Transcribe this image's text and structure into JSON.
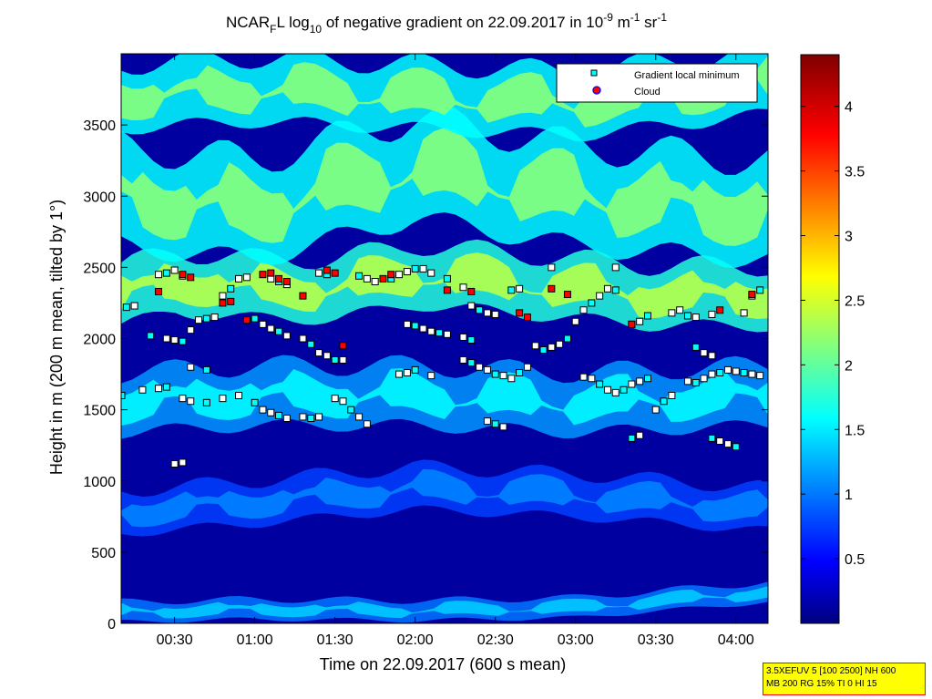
{
  "chart_data": {
    "type": "heatmap",
    "title": {
      "prefix": "NCAR",
      "prefix_sub": "F",
      "part2": "L log",
      "part2_sub": "10",
      "part3": " of negative gradient on 22.09.2017 in 10",
      "exp1": "-9",
      "part4": " m",
      "exp2": "-1",
      "part5": " sr",
      "exp3": "-1"
    },
    "xlabel": "Time on 22.09.2017 (600 s mean)",
    "ylabel": "Height in m (200 m mean, tilted by 1°)",
    "x_range_hours": [
      0.167,
      4.2
    ],
    "y_range_m": [
      0,
      4000
    ],
    "x_ticks": [
      {
        "h": 0.5,
        "label": "00:30"
      },
      {
        "h": 1.0,
        "label": "01:00"
      },
      {
        "h": 1.5,
        "label": "01:30"
      },
      {
        "h": 2.0,
        "label": "02:00"
      },
      {
        "h": 2.5,
        "label": "02:30"
      },
      {
        "h": 3.0,
        "label": "03:00"
      },
      {
        "h": 3.5,
        "label": "03:30"
      },
      {
        "h": 4.0,
        "label": "04:00"
      }
    ],
    "y_ticks": [
      0,
      500,
      1000,
      1500,
      2000,
      2500,
      3000,
      3500
    ],
    "colorbar": {
      "range": [
        0,
        4.4
      ],
      "ticks": [
        0.5,
        1,
        1.5,
        2,
        2.5,
        3,
        3.5,
        4
      ],
      "tick_labels": [
        "0.5",
        "1",
        "1.5",
        "2",
        "2.5",
        "3",
        "3.5",
        "4"
      ],
      "colormap": "jet"
    },
    "layers": [
      {
        "type": "band",
        "h0": 0.167,
        "h1": 4.2,
        "y_center": [
          [
            0.167,
            80
          ],
          [
            1.0,
            100
          ],
          [
            2.0,
            90
          ],
          [
            3.0,
            110
          ],
          [
            4.2,
            220
          ]
        ],
        "thickness": 140,
        "value": 1.4
      },
      {
        "type": "band",
        "h0": 0.167,
        "h1": 4.2,
        "y_center": [
          [
            0.167,
            780
          ],
          [
            1.0,
            850
          ],
          [
            2.0,
            950
          ],
          [
            3.0,
            900
          ],
          [
            4.2,
            800
          ]
        ],
        "thickness": 300,
        "value": 1.1
      },
      {
        "type": "band",
        "h0": 0.167,
        "h1": 4.2,
        "y_center": [
          [
            0.167,
            1550
          ],
          [
            1.0,
            1600
          ],
          [
            2.0,
            1600
          ],
          [
            3.0,
            1550
          ],
          [
            4.2,
            1600
          ]
        ],
        "thickness": 420,
        "value": 1.6
      },
      {
        "type": "band",
        "h0": 0.167,
        "h1": 4.2,
        "y_center": [
          [
            0.167,
            2300
          ],
          [
            0.5,
            2400
          ],
          [
            1.0,
            2350
          ],
          [
            1.5,
            2350
          ],
          [
            2.0,
            2450
          ],
          [
            2.5,
            2400
          ],
          [
            3.0,
            2350
          ],
          [
            3.5,
            2300
          ],
          [
            4.2,
            2300
          ]
        ],
        "thickness": 420,
        "value": 2.4
      },
      {
        "type": "band",
        "h0": 0.167,
        "h1": 4.2,
        "y_center": [
          [
            0.167,
            3000
          ],
          [
            1.0,
            2900
          ],
          [
            2.0,
            3200
          ],
          [
            3.0,
            3000
          ],
          [
            4.2,
            2900
          ]
        ],
        "thickness": 700,
        "value": 2.2
      },
      {
        "type": "band",
        "h0": 0.167,
        "h1": 4.2,
        "y_center": [
          [
            0.167,
            3700
          ],
          [
            1.0,
            3750
          ],
          [
            2.0,
            3700
          ],
          [
            3.0,
            3650
          ],
          [
            4.2,
            3800
          ]
        ],
        "thickness": 450,
        "value": 2.2
      }
    ],
    "markers_gradient_min": [
      [
        0.2,
        2220
      ],
      [
        0.25,
        2230
      ],
      [
        0.4,
        2450
      ],
      [
        0.45,
        2460
      ],
      [
        0.5,
        2480
      ],
      [
        0.55,
        2440
      ],
      [
        0.35,
        2020
      ],
      [
        0.45,
        2000
      ],
      [
        0.5,
        1990
      ],
      [
        0.55,
        1980
      ],
      [
        0.6,
        2060
      ],
      [
        0.65,
        2130
      ],
      [
        0.7,
        2140
      ],
      [
        0.75,
        2150
      ],
      [
        0.6,
        1800
      ],
      [
        0.7,
        1780
      ],
      [
        0.5,
        1120
      ],
      [
        0.55,
        1130
      ],
      [
        0.17,
        1600
      ],
      [
        0.3,
        1640
      ],
      [
        0.4,
        1650
      ],
      [
        0.45,
        1660
      ],
      [
        0.55,
        1580
      ],
      [
        0.6,
        1560
      ],
      [
        0.7,
        1550
      ],
      [
        0.8,
        1580
      ],
      [
        0.9,
        1600
      ],
      [
        1.0,
        1550
      ],
      [
        1.05,
        1500
      ],
      [
        1.1,
        1480
      ],
      [
        1.15,
        1460
      ],
      [
        1.2,
        1440
      ],
      [
        1.3,
        1450
      ],
      [
        1.35,
        1440
      ],
      [
        1.4,
        1450
      ],
      [
        0.8,
        2300
      ],
      [
        0.85,
        2350
      ],
      [
        0.9,
        2420
      ],
      [
        0.95,
        2430
      ],
      [
        1.0,
        2140
      ],
      [
        1.05,
        2100
      ],
      [
        1.1,
        2070
      ],
      [
        1.15,
        2050
      ],
      [
        1.2,
        2020
      ],
      [
        1.3,
        2000
      ],
      [
        1.35,
        1960
      ],
      [
        1.4,
        1900
      ],
      [
        1.45,
        1880
      ],
      [
        1.5,
        1850
      ],
      [
        1.55,
        1850
      ],
      [
        1.1,
        2420
      ],
      [
        1.15,
        2400
      ],
      [
        1.2,
        2380
      ],
      [
        1.4,
        2460
      ],
      [
        1.45,
        2450
      ],
      [
        1.5,
        1580
      ],
      [
        1.55,
        1560
      ],
      [
        1.6,
        1500
      ],
      [
        1.65,
        1450
      ],
      [
        1.7,
        1400
      ],
      [
        1.65,
        2440
      ],
      [
        1.7,
        2420
      ],
      [
        1.75,
        2400
      ],
      [
        1.85,
        2420
      ],
      [
        1.9,
        2450
      ],
      [
        1.95,
        2470
      ],
      [
        2.0,
        2490
      ],
      [
        2.05,
        2490
      ],
      [
        2.1,
        2460
      ],
      [
        2.2,
        2420
      ],
      [
        2.3,
        2360
      ],
      [
        1.95,
        2100
      ],
      [
        2.0,
        2090
      ],
      [
        2.05,
        2070
      ],
      [
        2.1,
        2050
      ],
      [
        2.15,
        2040
      ],
      [
        2.2,
        2030
      ],
      [
        2.3,
        2010
      ],
      [
        2.35,
        1990
      ],
      [
        1.9,
        1750
      ],
      [
        1.95,
        1760
      ],
      [
        2.0,
        1780
      ],
      [
        2.1,
        1740
      ],
      [
        2.3,
        1850
      ],
      [
        2.35,
        1830
      ],
      [
        2.4,
        1800
      ],
      [
        2.45,
        1780
      ],
      [
        2.5,
        1750
      ],
      [
        2.55,
        1740
      ],
      [
        2.6,
        1720
      ],
      [
        2.65,
        1760
      ],
      [
        2.7,
        1800
      ],
      [
        2.35,
        2230
      ],
      [
        2.4,
        2200
      ],
      [
        2.45,
        2180
      ],
      [
        2.5,
        2170
      ],
      [
        2.6,
        2340
      ],
      [
        2.65,
        2350
      ],
      [
        2.45,
        1420
      ],
      [
        2.5,
        1400
      ],
      [
        2.55,
        1380
      ],
      [
        2.75,
        1950
      ],
      [
        2.8,
        1920
      ],
      [
        2.85,
        1940
      ],
      [
        2.9,
        1960
      ],
      [
        2.95,
        2000
      ],
      [
        3.0,
        2120
      ],
      [
        3.05,
        2200
      ],
      [
        3.1,
        2250
      ],
      [
        3.15,
        2300
      ],
      [
        3.2,
        2350
      ],
      [
        3.25,
        2340
      ],
      [
        3.05,
        1730
      ],
      [
        3.1,
        1720
      ],
      [
        3.15,
        1680
      ],
      [
        3.2,
        1640
      ],
      [
        3.25,
        1620
      ],
      [
        3.3,
        1640
      ],
      [
        3.35,
        1680
      ],
      [
        3.4,
        1700
      ],
      [
        3.45,
        1720
      ],
      [
        3.35,
        2100
      ],
      [
        3.4,
        2120
      ],
      [
        3.45,
        2160
      ],
      [
        3.6,
        2180
      ],
      [
        3.65,
        2200
      ],
      [
        3.7,
        2160
      ],
      [
        3.75,
        2150
      ],
      [
        3.85,
        2170
      ],
      [
        3.35,
        1300
      ],
      [
        3.4,
        1320
      ],
      [
        3.5,
        1500
      ],
      [
        3.55,
        1560
      ],
      [
        3.6,
        1600
      ],
      [
        3.7,
        1700
      ],
      [
        3.75,
        1690
      ],
      [
        3.8,
        1720
      ],
      [
        3.85,
        1750
      ],
      [
        3.9,
        1760
      ],
      [
        3.95,
        1780
      ],
      [
        4.0,
        1770
      ],
      [
        4.05,
        1760
      ],
      [
        4.1,
        1750
      ],
      [
        4.15,
        1740
      ],
      [
        3.85,
        1300
      ],
      [
        3.9,
        1280
      ],
      [
        3.95,
        1260
      ],
      [
        4.0,
        1240
      ],
      [
        4.05,
        2180
      ],
      [
        4.1,
        2300
      ],
      [
        4.15,
        2340
      ],
      [
        3.25,
        2500
      ],
      [
        2.85,
        2500
      ],
      [
        3.75,
        1940
      ],
      [
        3.8,
        1900
      ],
      [
        3.85,
        1880
      ]
    ],
    "markers_cloud": [
      [
        0.4,
        2330
      ],
      [
        0.55,
        2450
      ],
      [
        0.6,
        2430
      ],
      [
        0.8,
        2250
      ],
      [
        0.85,
        2260
      ],
      [
        0.95,
        2130
      ],
      [
        1.05,
        2450
      ],
      [
        1.1,
        2460
      ],
      [
        1.15,
        2420
      ],
      [
        1.2,
        2400
      ],
      [
        1.3,
        2300
      ],
      [
        1.45,
        2480
      ],
      [
        1.5,
        2460
      ],
      [
        1.55,
        1950
      ],
      [
        1.8,
        2420
      ],
      [
        1.85,
        2450
      ],
      [
        2.2,
        2340
      ],
      [
        2.35,
        2330
      ],
      [
        2.65,
        2180
      ],
      [
        2.7,
        2150
      ],
      [
        2.85,
        2350
      ],
      [
        2.95,
        2310
      ],
      [
        3.35,
        2100
      ],
      [
        3.9,
        2200
      ],
      [
        4.1,
        2310
      ]
    ],
    "legend": {
      "placement": "top-right",
      "entries": [
        {
          "label": "Gradient local minimum",
          "marker": "square",
          "color": "#00ffff"
        },
        {
          "label": "Cloud",
          "marker": "circle",
          "color": "#ff0000"
        }
      ]
    },
    "info_box": {
      "lines": [
        "3.5XEFUV 5 [100 2500] NH 600",
        "MB 200 RG 15% TI 0 HI 15"
      ],
      "background": "#ffff00",
      "border": "#ff0000"
    }
  }
}
